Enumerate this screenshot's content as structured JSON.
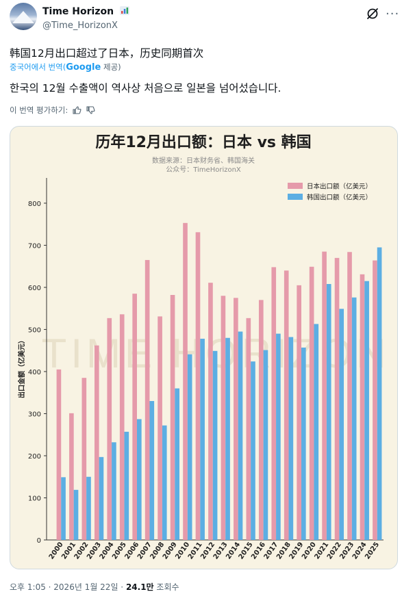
{
  "tweet": {
    "display_name": "Time Horizon",
    "handle": "@Time_HorizonX",
    "text": "韩国12月出口超过了日本，历史同期首次",
    "translated_from": "중국어에서 번역(",
    "translated_by": "Google",
    "translated_suffix": " 제공)",
    "translation": "한국의 12월 수출액이 역사상 처음으로 일본을 넘어섰습니다.",
    "rate_label": "이 번역 평가하기:",
    "timestamp": "오후 1:05 · 2026년 1월 22일 ·",
    "views_count": "24.1만",
    "views_label": "조회수"
  },
  "icons": {
    "grok": "grok-icon",
    "more": "more-icon",
    "thumbs_up": "thumbs-up-icon",
    "thumbs_down": "thumbs-down-icon",
    "badge": "bar-chart-icon"
  },
  "chart_data": {
    "type": "bar",
    "title": "历年12月出口额：日本 vs 韩国",
    "source_line": "数据来源：日本财务省、韩国海关",
    "account_line": "公众号：TimeHorizonX",
    "ylabel": "出口金额（亿美元）",
    "xlabel": "",
    "watermark": "TIME HORIZON",
    "ylim": [
      0,
      860
    ],
    "yticks": [
      0,
      100,
      200,
      300,
      400,
      500,
      600,
      700,
      800
    ],
    "legend_position": "top-right",
    "categories": [
      "2000",
      "2001",
      "2002",
      "2003",
      "2004",
      "2005",
      "2006",
      "2007",
      "2008",
      "2009",
      "2010",
      "2011",
      "2012",
      "2013",
      "2014",
      "2015",
      "2016",
      "2017",
      "2018",
      "2019",
      "2020",
      "2021",
      "2022",
      "2023",
      "2024",
      "2025"
    ],
    "series": [
      {
        "name": "日本出口额（亿美元）",
        "color": "#e59aaa",
        "values": [
          405,
          301,
          385,
          462,
          527,
          536,
          585,
          665,
          531,
          582,
          753,
          731,
          611,
          580,
          575,
          527,
          570,
          648,
          640,
          605,
          649,
          685,
          670,
          684,
          631,
          664
        ]
      },
      {
        "name": "韩国出口额（亿美元）",
        "color": "#5caee3",
        "values": [
          149,
          119,
          150,
          197,
          232,
          257,
          287,
          330,
          272,
          360,
          441,
          478,
          449,
          480,
          495,
          424,
          451,
          490,
          482,
          457,
          513,
          608,
          549,
          576,
          615,
          695
        ]
      }
    ]
  }
}
